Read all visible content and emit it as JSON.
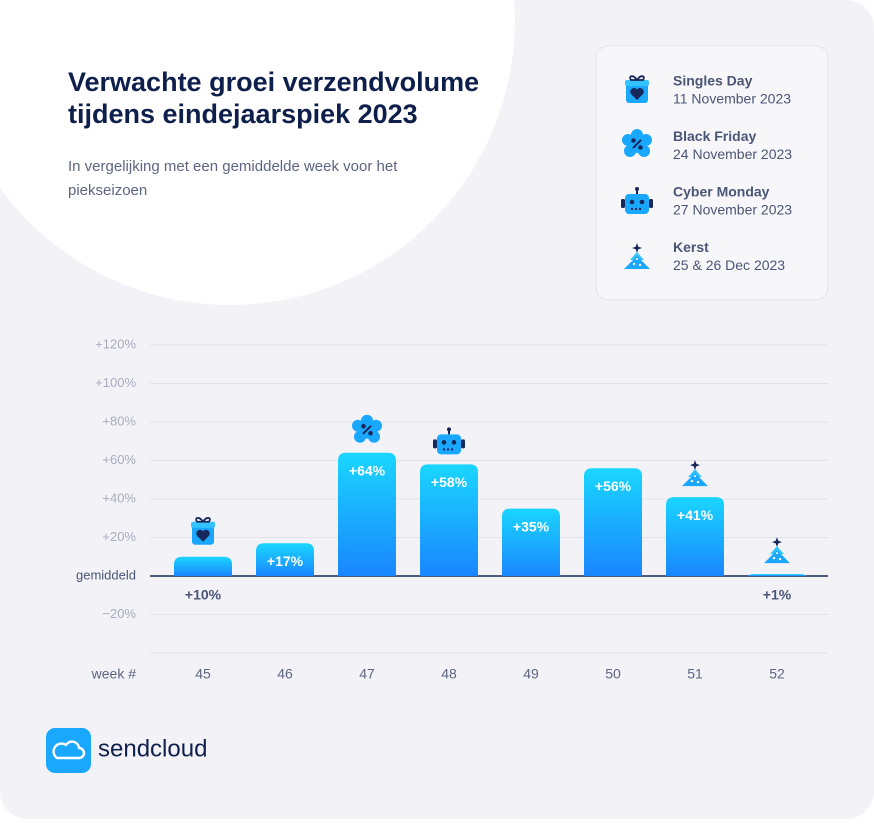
{
  "title": [
    "Verwachte groei verzendvolume",
    "tijdens eindejaarspiek 2023"
  ],
  "subtitle": [
    "In vergelijking met een gemiddelde week voor het",
    "piekseizoen"
  ],
  "legend": [
    {
      "name": "Singles Day",
      "date": "11 November 2023"
    },
    {
      "name": "Black Friday",
      "date": "24 November 2023"
    },
    {
      "name": "Cyber Monday",
      "date": "27 November 2023"
    },
    {
      "name": "Kerst",
      "date": "25 & 26 Dec 2023"
    }
  ],
  "logo": "sendcloud",
  "chart_data": {
    "type": "bar",
    "x_label": "week #",
    "categories": [
      "45",
      "46",
      "47",
      "48",
      "49",
      "50",
      "51",
      "52"
    ],
    "values": [
      10,
      17,
      64,
      58,
      35,
      56,
      41,
      1
    ],
    "value_labels": [
      "+10%",
      "+17%",
      "+64%",
      "+58%",
      "+35%",
      "+56%",
      "+41%",
      "+1%"
    ],
    "ylim": [
      -40,
      120
    ],
    "yticks": [
      {
        "value": -20,
        "label": "−20%"
      },
      {
        "value": 0,
        "label": "gemiddeld"
      },
      {
        "value": 20,
        "label": "+20%"
      },
      {
        "value": 40,
        "label": "+40%"
      },
      {
        "value": 60,
        "label": "+60%"
      },
      {
        "value": 80,
        "label": "+80%"
      },
      {
        "value": 100,
        "label": "+100%"
      },
      {
        "value": 120,
        "label": "+120%"
      }
    ],
    "grid": true,
    "gradient": [
      "#1ad6ff",
      "#1a86ff"
    ]
  }
}
